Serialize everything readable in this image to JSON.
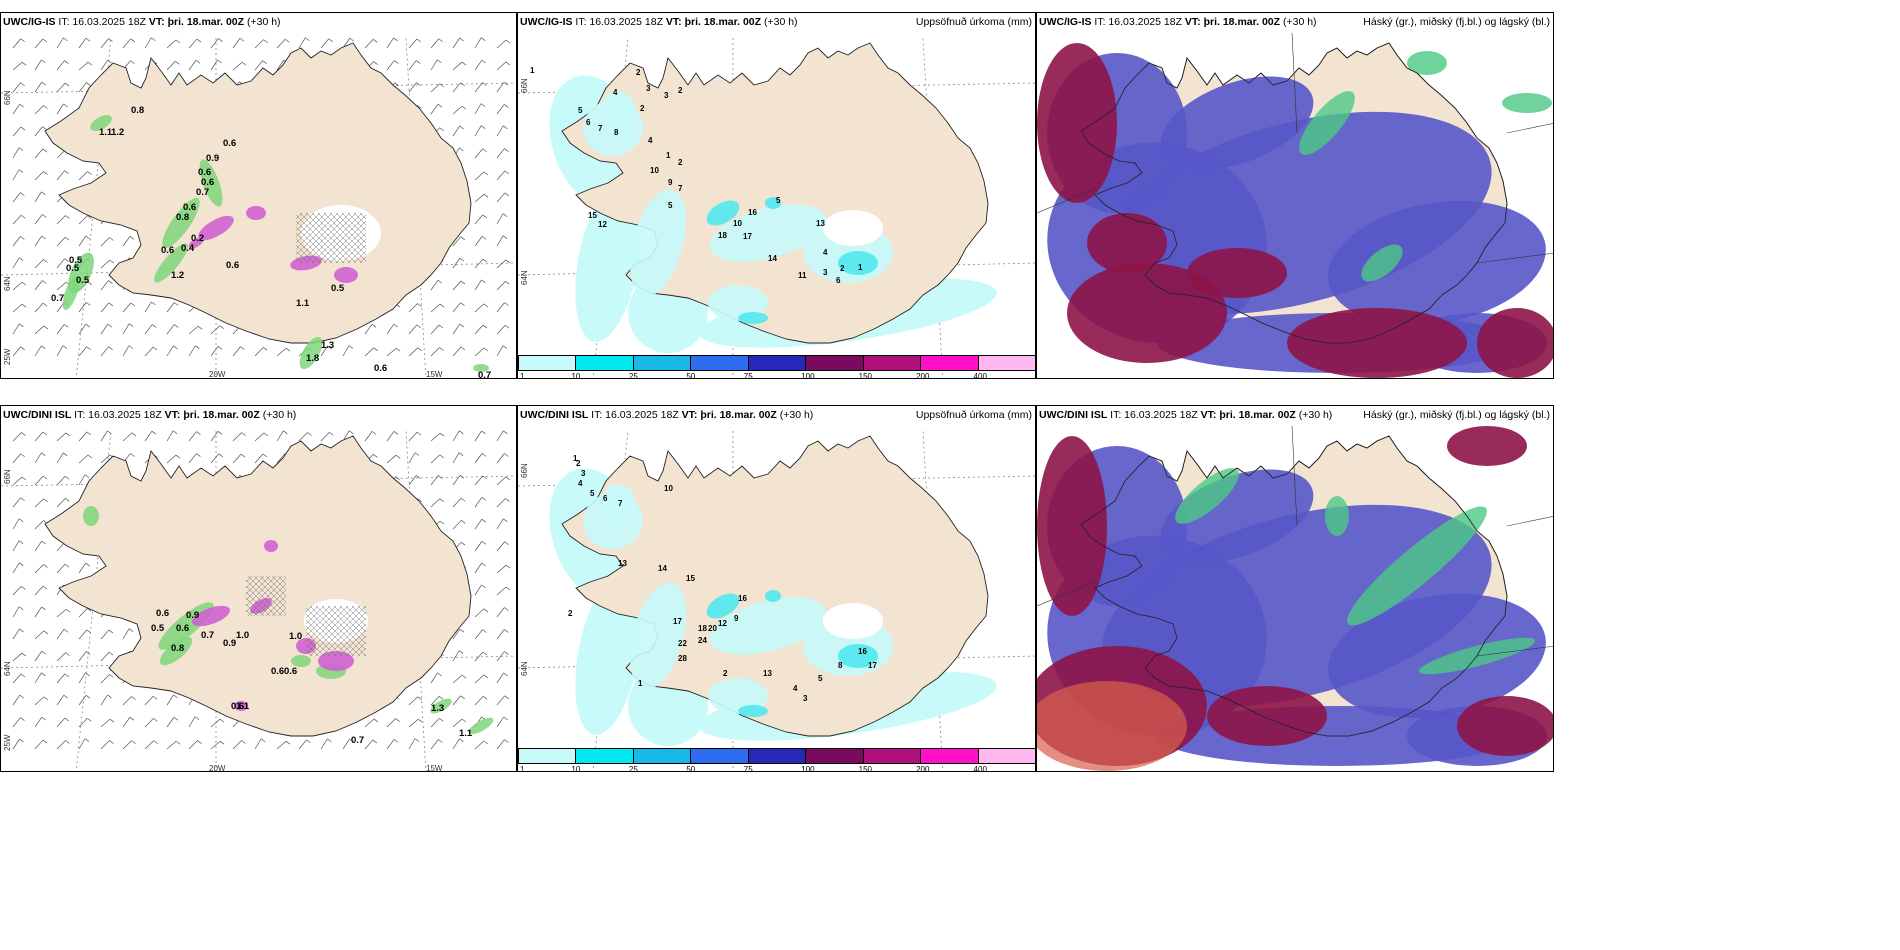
{
  "panels": [
    {
      "id": "p1",
      "model": "UWC/IG-IS",
      "it": "IT: 16.03.2025 18Z",
      "vt_label": "VT:",
      "vt": "þri. 18.mar. 00Z",
      "lead": "(+30 h)",
      "right": ""
    },
    {
      "id": "p2",
      "model": "UWC/IG-IS",
      "it": "IT: 16.03.2025 18Z",
      "vt_label": "VT:",
      "vt": "þri. 18.mar. 00Z",
      "lead": "(+30 h)",
      "right": "Uppsöfnuð úrkoma (mm)"
    },
    {
      "id": "p3",
      "model": "UWC/IG-IS",
      "it": "IT: 16.03.2025 18Z",
      "vt_label": "VT:",
      "vt": "þri. 18.mar. 00Z",
      "lead": "(+30 h)",
      "right": "Háský (gr.), miðský (fj.bl.) og lágský (bl.)"
    },
    {
      "id": "p4",
      "model": "UWC/DINI ISL",
      "it": "IT: 16.03.2025 18Z",
      "vt_label": "VT:",
      "vt": "þri. 18.mar. 00Z",
      "lead": "(+30 h)",
      "right": ""
    },
    {
      "id": "p5",
      "model": "UWC/DINI ISL",
      "it": "IT: 16.03.2025 18Z",
      "vt_label": "VT:",
      "vt": "þri. 18.mar. 00Z",
      "lead": "(+30 h)",
      "right": "Uppsöfnuð úrkoma (mm)"
    },
    {
      "id": "p6",
      "model": "UWC/DINI ISL",
      "it": "IT: 16.03.2025 18Z",
      "vt_label": "VT:",
      "vt": "þri. 18.mar. 00Z",
      "lead": "(+30 h)",
      "right": "Háský (gr.), miðský (fj.bl.) og lágský (bl.)"
    }
  ],
  "graticule": {
    "lat_66": "66N",
    "lat_64": "64N",
    "lon_25": "25W",
    "lon_20": "20W",
    "lon_15": "15W"
  },
  "colorbar": {
    "ticks": [
      "1",
      "10",
      "25",
      "50",
      "75",
      "100",
      "150",
      "200",
      "400"
    ],
    "colors": [
      "#c6fafa",
      "#00e8f0",
      "#18b8e8",
      "#2e6cf0",
      "#2828b8",
      "#7a0a60",
      "#b0107c",
      "#ff10c8",
      "#ffb8f0"
    ]
  },
  "colors": {
    "land": "#f3e3d1",
    "coast": "#222222",
    "precip_light": "#c6fafa",
    "precip_mid": "#50e8f0",
    "wind_green": "#7ed67a",
    "snow_pink": "#d060d0",
    "low_cloud": "#5656c8",
    "mid_cloud": "#8e1448",
    "high_cloud": "#4cc886"
  },
  "p1_values": [
    "0.8",
    "1.1",
    "1.2",
    "0.9",
    "0.6",
    "0.6",
    "0.6",
    "0.7",
    "0.6",
    "0.8",
    "0.5",
    "0.5",
    "0.5",
    "0.7",
    "1.2",
    "0.6",
    "0.5",
    "1.1",
    "1.8",
    "1.3",
    "0.6",
    "0.7",
    "0.6",
    "0.4",
    "0.2"
  ],
  "p2_values": [
    "1",
    "2",
    "3",
    "4",
    "5",
    "6",
    "7",
    "8",
    "2",
    "2",
    "3",
    "4",
    "1",
    "2",
    "10",
    "9",
    "7",
    "5",
    "15",
    "12",
    "10",
    "18",
    "17",
    "16",
    "13",
    "5",
    "4",
    "3",
    "2",
    "1",
    "6",
    "11",
    "14"
  ],
  "p4_values": [
    "0.6",
    "0.5",
    "0.6",
    "0.9",
    "1.0",
    "0.7",
    "0.9",
    "0.6",
    "0.6",
    "1.0",
    "1.3",
    "1.1",
    "0.7",
    "0.6",
    "1.1",
    "0.8"
  ],
  "p5_values": [
    "1",
    "2",
    "3",
    "4",
    "5",
    "6",
    "7",
    "10",
    "13",
    "14",
    "15",
    "17",
    "22",
    "28",
    "18",
    "20",
    "24",
    "16",
    "9",
    "12",
    "8",
    "17",
    "16",
    "13",
    "5",
    "4",
    "3",
    "2",
    "1",
    "2"
  ]
}
